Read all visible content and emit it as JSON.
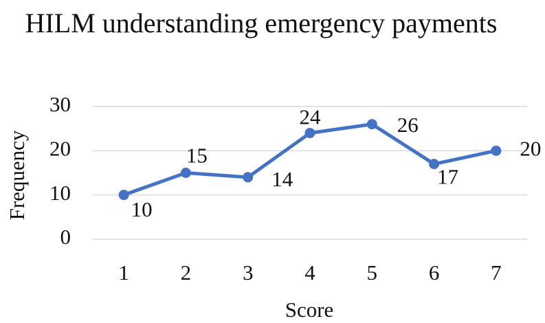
{
  "chart_data": {
    "type": "line",
    "title": "HILM understanding emergency payments",
    "x_label": "Score",
    "y_label": "Frequency",
    "categories": [
      "1",
      "2",
      "3",
      "4",
      "5",
      "6",
      "7"
    ],
    "series": [
      {
        "name": "Frequency",
        "color": "#4472c4",
        "values": [
          10,
          15,
          14,
          24,
          26,
          17,
          20
        ]
      }
    ],
    "ylim": [
      0,
      30
    ],
    "yticks": [
      0,
      10,
      20,
      30
    ],
    "grid": true,
    "data_labels": true
  }
}
